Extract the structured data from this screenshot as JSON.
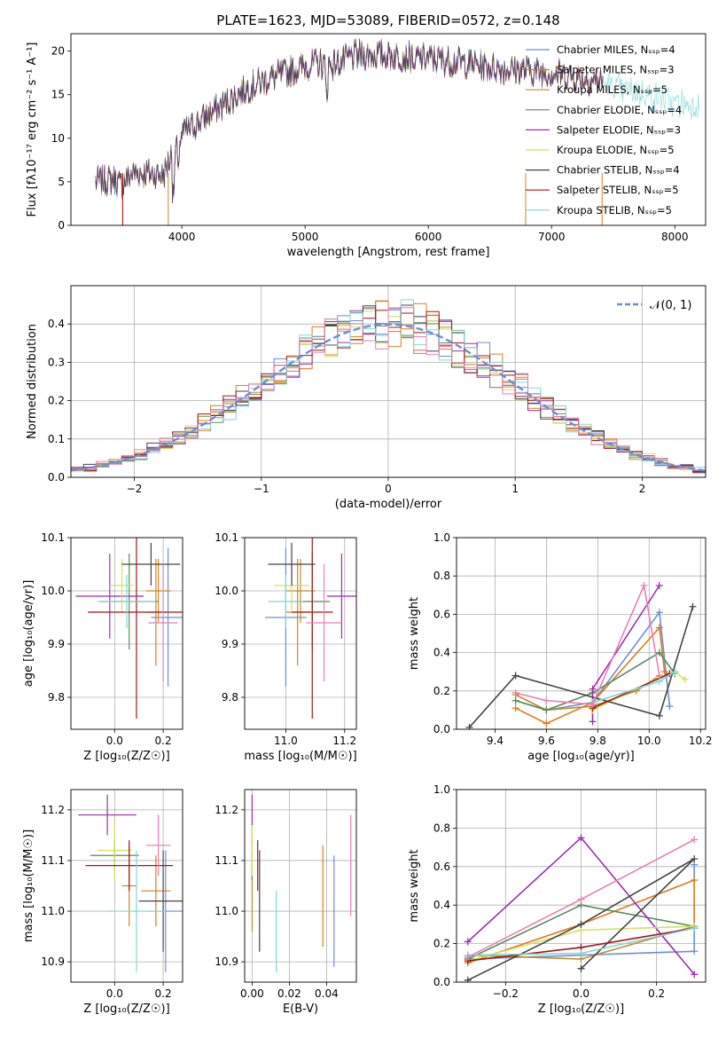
{
  "colors": [
    "#6a8fd8",
    "#e07b1f",
    "#c48a2a",
    "#5e8a5e",
    "#9b2fae",
    "#d4e060",
    "#444444",
    "#a01818",
    "#82d6d6",
    "#e87fb8",
    "#b8e080",
    "#777777"
  ],
  "chart_data": [
    {
      "type": "line",
      "title": "PLATE=1623, MJD=53089, FIBERID=0572, z=0.148",
      "xlabel": "wavelength [Angstrom, rest frame]",
      "ylabel": "Flux [fλ10⁻¹⁷ erg cm⁻² s⁻¹ A⁻¹]",
      "xlim": [
        3100,
        8250
      ],
      "ylim": [
        0,
        22
      ],
      "xticks": [
        4000,
        5000,
        6000,
        7000,
        8000
      ],
      "yticks": [
        0,
        5,
        10,
        15,
        20
      ],
      "grid": false,
      "legend": "top-right",
      "spectrum_anchors": {
        "x": [
          3300,
          3450,
          3500,
          3600,
          3700,
          3850,
          3900,
          3950,
          4000,
          4100,
          4200,
          4300,
          4400,
          4500,
          4600,
          4700,
          4800,
          4900,
          5000,
          5100,
          5200,
          5300,
          5400,
          5600,
          5800,
          6000,
          6200,
          6400,
          6600,
          6800,
          7000,
          7200,
          7400,
          7600,
          7800,
          8000,
          8200
        ],
        "y": [
          5,
          5.3,
          4.6,
          6,
          6,
          5.8,
          7.5,
          9.5,
          10.5,
          11.5,
          12.5,
          13.5,
          14.5,
          15.5,
          16.2,
          16.8,
          17.3,
          17.8,
          18.3,
          18.6,
          18.4,
          18.8,
          19.5,
          19.6,
          19.4,
          19.2,
          18.8,
          18.4,
          18.0,
          17.8,
          17.5,
          17,
          16.5,
          15.5,
          15,
          14,
          14
        ]
      },
      "series": [
        {
          "name": "Chabrier MILES, N_SSP=4"
        },
        {
          "name": "Salpeter MILES, N_SSP=3"
        },
        {
          "name": "Kroupa MILES, N_SSP=5"
        },
        {
          "name": "Chabrier ELODIE, N_SSP=4"
        },
        {
          "name": "Salpeter ELODIE, N_SSP=3"
        },
        {
          "name": "Kroupa ELODIE, N_SSP=5"
        },
        {
          "name": "Chabrier STELIB, N_SSP=4"
        },
        {
          "name": "Salpeter STELIB, N_SSP=5"
        },
        {
          "name": "Kroupa STELIB, N_SSP=5"
        }
      ]
    },
    {
      "type": "line",
      "xlabel": "(data-model)/error",
      "ylabel": "Normed distribution",
      "xlim": [
        -2.5,
        2.5
      ],
      "ylim": [
        0,
        0.5
      ],
      "xticks": [
        -2,
        -1,
        0,
        1,
        2
      ],
      "yticks": [
        0.0,
        0.1,
        0.2,
        0.3,
        0.4
      ],
      "grid": true,
      "legend": "top-right",
      "legend_label": "𝒩(0, 1)",
      "bin_width": 0.1
    },
    {
      "type": "scatter",
      "xlabel": "Z [log₁₀(Z/Z☉)]",
      "ylabel": "age  [log₁₀(age/yr)]",
      "xlim": [
        -0.18,
        0.28
      ],
      "ylim": [
        9.74,
        10.1
      ],
      "xticks": [
        0.0,
        0.2
      ],
      "yticks": [
        9.8,
        9.9,
        10.0,
        10.1
      ],
      "grid": true,
      "points": [
        {
          "x": 0.22,
          "y": 9.95,
          "xerr": 0.07,
          "yerr": 0.13
        },
        {
          "x": 0.17,
          "y": 9.96,
          "xerr": 0.04,
          "yerr": 0.1
        },
        {
          "x": 0.18,
          "y": 10.0,
          "xerr": 0.05,
          "yerr": 0.06
        },
        {
          "x": 0.06,
          "y": 9.98,
          "xerr": 0.12,
          "yerr": 0.09
        },
        {
          "x": -0.02,
          "y": 9.99,
          "xerr": 0.14,
          "yerr": 0.08
        },
        {
          "x": 0.03,
          "y": 10.01,
          "xerr": 0.05,
          "yerr": 0.05
        },
        {
          "x": 0.15,
          "y": 10.05,
          "xerr": 0.12,
          "yerr": 0.04
        },
        {
          "x": 0.09,
          "y": 9.96,
          "xerr": 0.2,
          "yerr": 0.2
        },
        {
          "x": 0.05,
          "y": 9.98,
          "xerr": 0.12,
          "yerr": 0.05
        },
        {
          "x": 0.2,
          "y": 9.94,
          "xerr": 0.06,
          "yerr": 0.11
        }
      ]
    },
    {
      "type": "scatter",
      "xlabel": "mass [log₁₀(M/M☉)]",
      "xlim": [
        10.86,
        11.24
      ],
      "ylim": [
        9.74,
        10.1
      ],
      "xticks": [
        11.0,
        11.2
      ],
      "yticks": [
        9.8,
        9.9,
        10.0,
        10.1
      ],
      "grid": true,
      "points": [
        {
          "x": 11.0,
          "y": 9.95,
          "xerr": 0.07,
          "yerr": 0.13
        },
        {
          "x": 11.04,
          "y": 9.96,
          "xerr": 0.04,
          "yerr": 0.1
        },
        {
          "x": 11.05,
          "y": 10.0,
          "xerr": 0.05,
          "yerr": 0.06
        },
        {
          "x": 11.09,
          "y": 9.98,
          "xerr": 0.06,
          "yerr": 0.09
        },
        {
          "x": 11.19,
          "y": 9.99,
          "xerr": 0.05,
          "yerr": 0.08
        },
        {
          "x": 11.02,
          "y": 10.01,
          "xerr": 0.06,
          "yerr": 0.05
        },
        {
          "x": 11.02,
          "y": 10.05,
          "xerr": 0.08,
          "yerr": 0.04
        },
        {
          "x": 11.09,
          "y": 9.96,
          "xerr": 0.07,
          "yerr": 0.2
        },
        {
          "x": 11.0,
          "y": 9.98,
          "xerr": 0.06,
          "yerr": 0.05
        },
        {
          "x": 11.13,
          "y": 9.94,
          "xerr": 0.06,
          "yerr": 0.11
        }
      ]
    },
    {
      "type": "line",
      "xlabel": "age  [log₁₀(age/yr)]",
      "ylabel": "mass weight",
      "xlim": [
        9.25,
        10.22
      ],
      "ylim": [
        0,
        1
      ],
      "xticks": [
        9.4,
        9.6,
        9.8,
        10.0,
        10.2
      ],
      "yticks": [
        0.0,
        0.2,
        0.4,
        0.6,
        0.8,
        1.0
      ],
      "grid": true,
      "series": [
        {
          "x": [
            9.48,
            9.6,
            9.78,
            10.04,
            10.08
          ],
          "y": [
            0.15,
            0.1,
            0.14,
            0.61,
            0.12
          ]
        },
        {
          "x": [
            9.48,
            9.6,
            9.78,
            10.04,
            10.06
          ],
          "y": [
            0.11,
            0.03,
            0.14,
            0.53,
            0.3
          ]
        },
        {
          "x": [
            9.48,
            9.6,
            9.78,
            9.95,
            10.04
          ],
          "y": [
            0.18,
            0.1,
            0.12,
            0.2,
            0.28
          ]
        },
        {
          "x": [
            9.48,
            9.6,
            9.78,
            10.04,
            10.1
          ],
          "y": [
            0.15,
            0.1,
            0.19,
            0.4,
            0.29
          ]
        },
        {
          "x": [
            9.78,
            9.78,
            10.04
          ],
          "y": [
            0.04,
            0.21,
            0.75
          ]
        },
        {
          "x": [
            9.78,
            10.04,
            10.1,
            10.14
          ],
          "y": [
            0.1,
            0.27,
            0.3,
            0.26
          ]
        },
        {
          "x": [
            9.3,
            9.48,
            10.04,
            10.17
          ],
          "y": [
            0.01,
            0.28,
            0.07,
            0.64
          ]
        },
        {
          "x": [
            9.78,
            10.08
          ],
          "y": [
            0.11,
            0.29
          ]
        },
        {
          "x": [
            9.78,
            10.04,
            10.1
          ],
          "y": [
            0.14,
            0.25,
            0.3
          ]
        },
        {
          "x": [
            9.48,
            9.6,
            9.78,
            9.98,
            10.04
          ],
          "y": [
            0.19,
            0.15,
            0.13,
            0.75,
            0.28
          ]
        }
      ]
    },
    {
      "type": "scatter",
      "xlabel": "Z [log₁₀(Z/Z☉)]",
      "ylabel": "mass [log₁₀(M/M☉)]",
      "xlim": [
        -0.18,
        0.28
      ],
      "ylim": [
        10.86,
        11.24
      ],
      "xticks": [
        0.0,
        0.2
      ],
      "yticks": [
        10.9,
        11.0,
        11.1,
        11.2
      ],
      "grid": true,
      "points": [
        {
          "x": 0.21,
          "y": 11.0,
          "xerr": 0.07,
          "yerr": 0.12
        },
        {
          "x": 0.17,
          "y": 11.04,
          "xerr": 0.06,
          "yerr": 0.07
        },
        {
          "x": 0.06,
          "y": 11.05,
          "xerr": 0.03,
          "yerr": 0.08
        },
        {
          "x": 0.0,
          "y": 11.11,
          "xerr": 0.1,
          "yerr": 0.03
        },
        {
          "x": -0.03,
          "y": 11.19,
          "xerr": 0.12,
          "yerr": 0.04
        },
        {
          "x": 0.0,
          "y": 11.12,
          "xerr": 0.07,
          "yerr": 0.06
        },
        {
          "x": 0.2,
          "y": 11.02,
          "xerr": 0.1,
          "yerr": 0.1
        },
        {
          "x": 0.06,
          "y": 11.09,
          "xerr": 0.18,
          "yerr": 0.05
        },
        {
          "x": 0.09,
          "y": 11.0,
          "xerr": 0.12,
          "yerr": 0.12
        },
        {
          "x": 0.18,
          "y": 11.13,
          "xerr": 0.05,
          "yerr": 0.06
        }
      ]
    },
    {
      "type": "scatter",
      "xlabel": "E(B-V)",
      "xlim": [
        -0.004,
        0.056
      ],
      "ylim": [
        10.86,
        11.24
      ],
      "xticks": [
        0.0,
        0.02,
        0.04
      ],
      "yticks": [
        10.9,
        11.0,
        11.1,
        11.2
      ],
      "grid": true,
      "points": [
        {
          "x": 0.044,
          "y": 11.0,
          "xerr": 0,
          "yerr": 0.11
        },
        {
          "x": 0.038,
          "y": 11.03,
          "xerr": 0,
          "yerr": 0.1
        },
        {
          "x": 0.0,
          "y": 11.04,
          "xerr": 0,
          "yerr": 0.08
        },
        {
          "x": 0.0,
          "y": 11.1,
          "xerr": 0,
          "yerr": 0.04
        },
        {
          "x": 0.0,
          "y": 11.18,
          "xerr": 0,
          "yerr": 0.05
        },
        {
          "x": 0.0,
          "y": 11.12,
          "xerr": 0,
          "yerr": 0.05
        },
        {
          "x": 0.004,
          "y": 11.02,
          "xerr": 0,
          "yerr": 0.1
        },
        {
          "x": 0.003,
          "y": 11.09,
          "xerr": 0,
          "yerr": 0.05
        },
        {
          "x": 0.013,
          "y": 10.96,
          "xerr": 0,
          "yerr": 0.08
        },
        {
          "x": 0.053,
          "y": 11.09,
          "xerr": 0,
          "yerr": 0.1
        }
      ]
    },
    {
      "type": "line",
      "xlabel": "Z [log₁₀(Z/Z☉)]",
      "ylabel": "mass weight",
      "xlim": [
        -0.33,
        0.33
      ],
      "ylim": [
        0,
        1
      ],
      "xticks": [
        -0.2,
        0.0,
        0.2
      ],
      "yticks": [
        0.0,
        0.2,
        0.4,
        0.6,
        0.8,
        1.0
      ],
      "grid": true,
      "series": [
        {
          "x": [
            -0.3,
            0.0,
            0.3,
            0.3
          ],
          "y": [
            0.12,
            0.14,
            0.16,
            0.61
          ]
        },
        {
          "x": [
            -0.3,
            0.0,
            0.3,
            0.3
          ],
          "y": [
            0.1,
            0.3,
            0.53,
            0.29
          ]
        },
        {
          "x": [
            -0.3,
            0.0,
            0.3
          ],
          "y": [
            0.14,
            0.12,
            0.29
          ]
        },
        {
          "x": [
            -0.3,
            0.0,
            0.3
          ],
          "y": [
            0.12,
            0.4,
            0.29
          ]
        },
        {
          "x": [
            -0.3,
            0.0,
            0.3
          ],
          "y": [
            0.21,
            0.75,
            0.04
          ]
        },
        {
          "x": [
            -0.3,
            0.0,
            0.3
          ],
          "y": [
            0.11,
            0.27,
            0.29
          ]
        },
        {
          "x": [
            -0.3,
            0.0,
            0.3,
            0.0
          ],
          "y": [
            0.01,
            0.3,
            0.64,
            0.07
          ]
        },
        {
          "x": [
            -0.3,
            0.0,
            0.3
          ],
          "y": [
            0.11,
            0.18,
            0.28
          ]
        },
        {
          "x": [
            -0.3,
            0.0,
            0.3
          ],
          "y": [
            0.14,
            0.15,
            0.28
          ]
        },
        {
          "x": [
            -0.3,
            0.0,
            0.3
          ],
          "y": [
            0.13,
            0.43,
            0.74
          ]
        }
      ]
    }
  ]
}
